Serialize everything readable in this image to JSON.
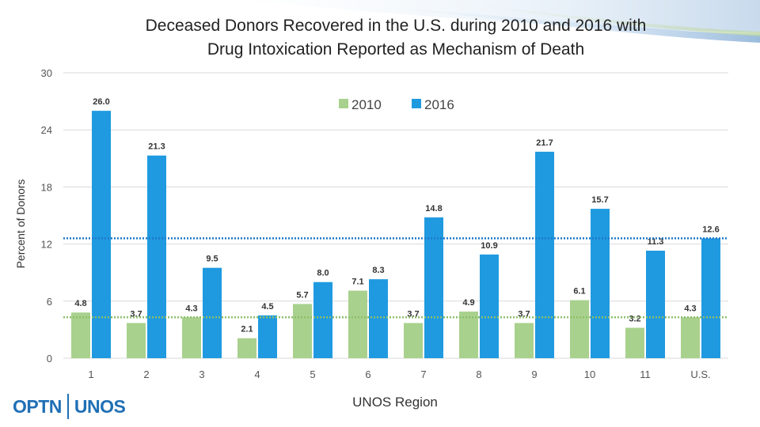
{
  "chart_data": {
    "type": "bar",
    "title_line1": "Deceased Donors Recovered in the U.S. during 2010 and 2016 with",
    "title_line2": "Drug Intoxication Reported as Mechanism of Death",
    "xlabel": "UNOS Region",
    "ylabel": "Percent of Donors",
    "ylim": [
      0,
      30
    ],
    "yticks": [
      "0",
      "6",
      "12",
      "18",
      "24",
      "30"
    ],
    "categories": [
      "1",
      "2",
      "3",
      "4",
      "5",
      "6",
      "7",
      "8",
      "9",
      "10",
      "11",
      "U.S."
    ],
    "series": [
      {
        "name": "2010",
        "color": "#a9d18e",
        "values": [
          4.8,
          3.7,
          4.3,
          2.1,
          5.7,
          7.1,
          3.7,
          4.9,
          3.7,
          6.1,
          3.2,
          4.3
        ],
        "labels": [
          "4.8",
          "3.7",
          "4.3",
          "2.1",
          "5.7",
          "7.1",
          "3.7",
          "4.9",
          "3.7",
          "6.1",
          "3.2",
          "4.3"
        ]
      },
      {
        "name": "2016",
        "color": "#1f9ae0",
        "values": [
          26.0,
          21.3,
          9.5,
          4.5,
          8.0,
          8.3,
          14.8,
          10.9,
          21.7,
          15.7,
          11.3,
          12.6
        ],
        "labels": [
          "26.0",
          "21.3",
          "9.5",
          "4.5",
          "8.0",
          "8.3",
          "14.8",
          "10.9",
          "21.7",
          "15.7",
          "11.3",
          "12.6"
        ]
      }
    ],
    "reference_lines": [
      {
        "series": "2010",
        "value": 4.3,
        "color": "#8cbf6a"
      },
      {
        "series": "2016",
        "value": 12.6,
        "color": "#1f78c8"
      }
    ],
    "legend_position": "top-center",
    "grid": true
  },
  "logo": {
    "left": "OPTN",
    "right": "UNOS"
  }
}
